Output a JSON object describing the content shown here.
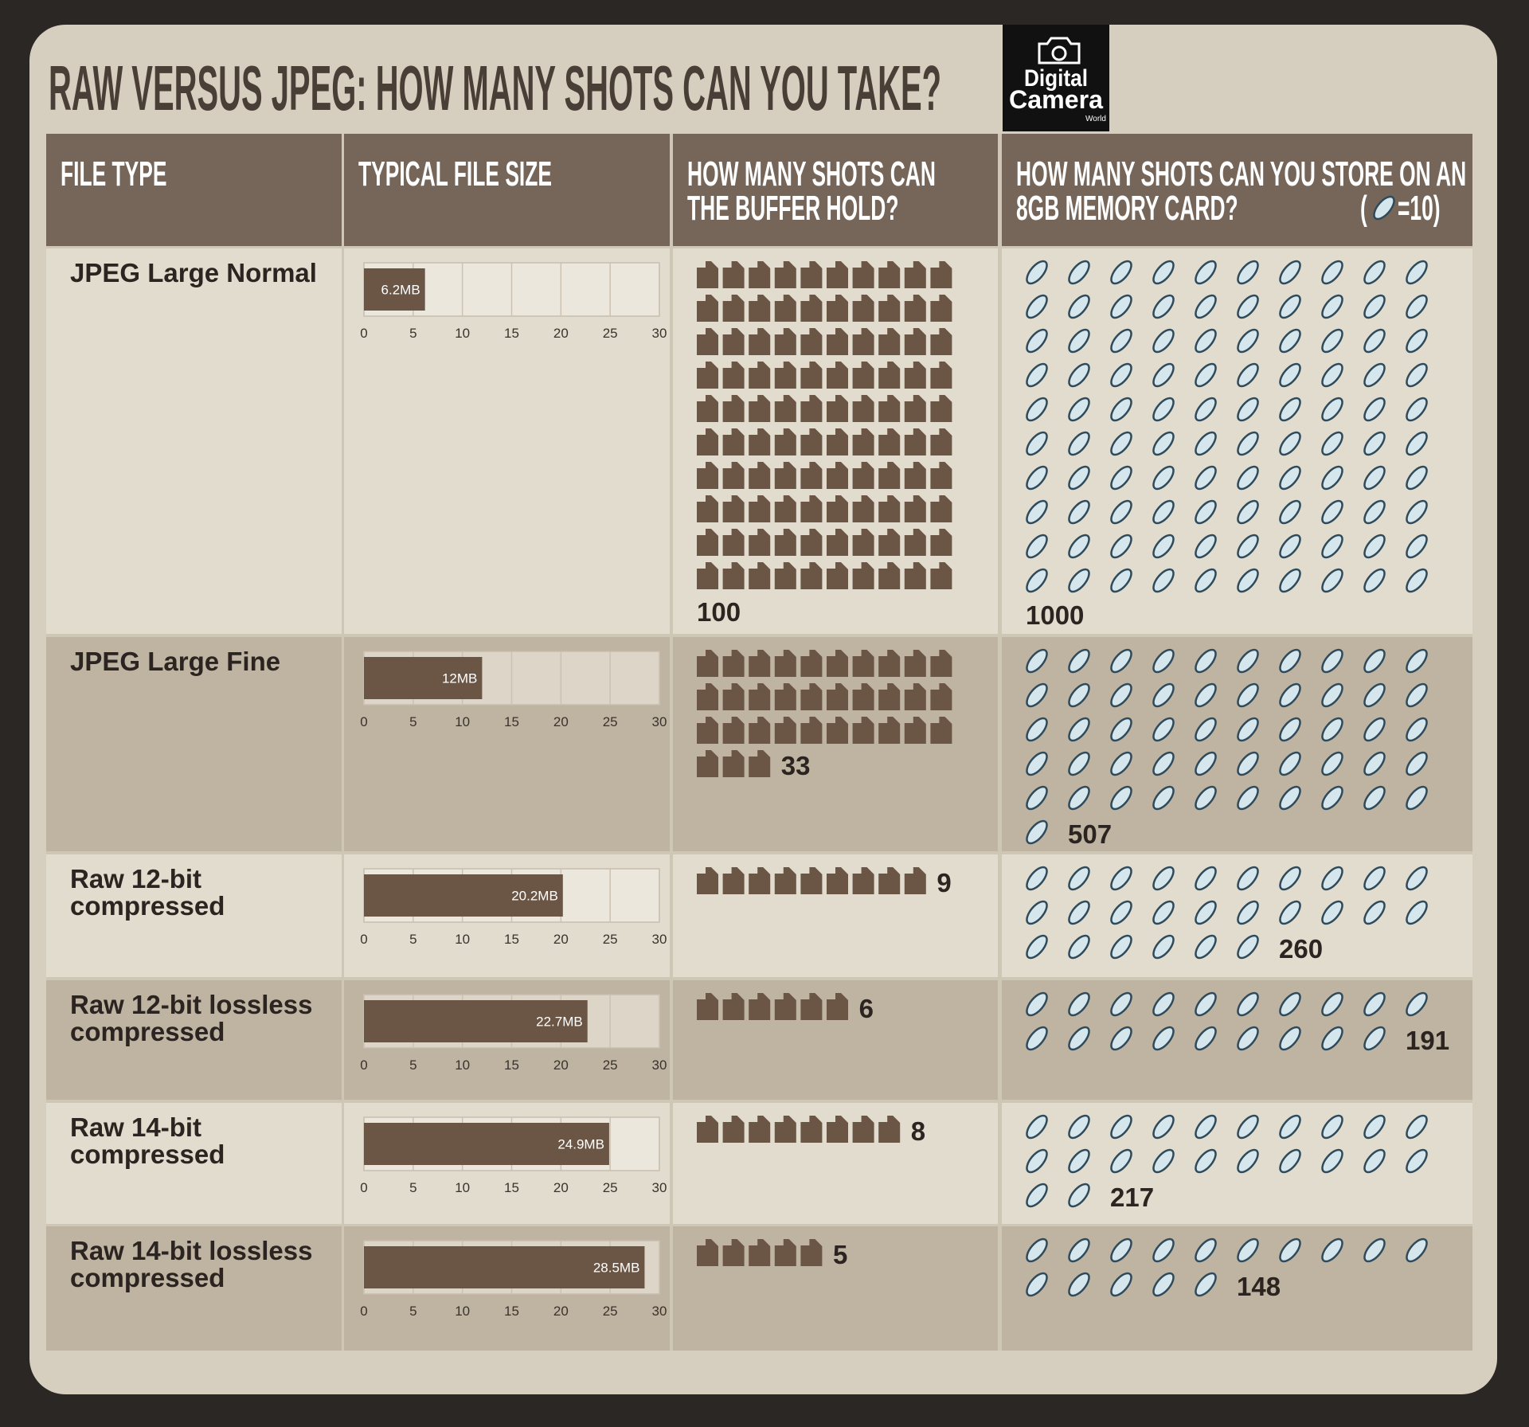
{
  "title": "RAW VERSUS JPEG: HOW MANY SHOTS CAN YOU TAKE?",
  "logo": [
    "Digital",
    "Camera",
    "World"
  ],
  "columns": [
    [
      "FILE TYPE"
    ],
    [
      "TYPICAL FILE SIZE"
    ],
    [
      "HOW MANY SHOTS CAN",
      "THE BUFFER HOLD?"
    ],
    [
      "HOW MANY SHOTS CAN YOU STORE ON AN",
      "8GB MEMORY CARD?"
    ]
  ],
  "card_key": {
    "before": "(",
    "after": "=10)",
    "value": 10
  },
  "size_axis": {
    "xlim": [
      0,
      30
    ],
    "xticks": [
      0,
      5,
      10,
      15,
      20,
      25,
      30
    ]
  },
  "rows": [
    {
      "file_type": [
        "JPEG Large Normal"
      ],
      "size": 6.2,
      "size_label": "6.2MB",
      "buffer": 100,
      "card": 1000
    },
    {
      "file_type": [
        "JPEG Large Fine"
      ],
      "size": 12,
      "size_label": "12MB",
      "buffer": 33,
      "card": 507
    },
    {
      "file_type": [
        "Raw 12-bit",
        "compressed"
      ],
      "size": 20.2,
      "size_label": "20.2MB",
      "buffer": 9,
      "card": 260
    },
    {
      "file_type": [
        "Raw 12-bit lossless",
        "compressed"
      ],
      "size": 22.7,
      "size_label": "22.7MB",
      "buffer": 6,
      "card": 191
    },
    {
      "file_type": [
        "Raw 14-bit",
        "compressed"
      ],
      "size": 24.9,
      "size_label": "24.9MB",
      "buffer": 8,
      "card": 217
    },
    {
      "file_type": [
        "Raw 14-bit lossless",
        "compressed"
      ],
      "size": 28.5,
      "size_label": "28.5MB",
      "buffer": 5,
      "card": 148
    }
  ]
}
